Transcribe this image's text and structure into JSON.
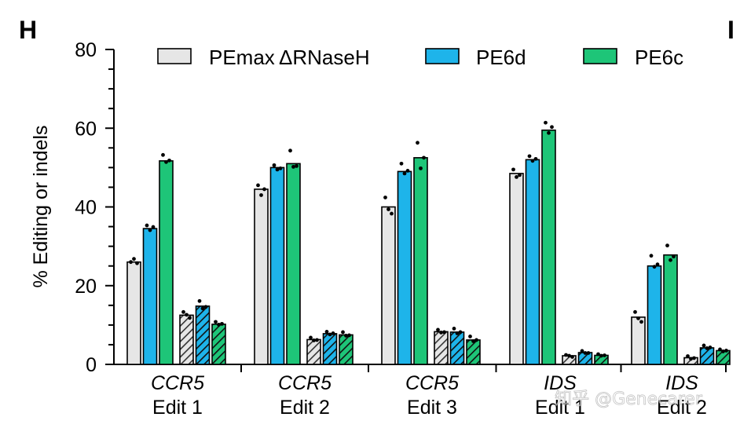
{
  "panel_labels": {
    "left": "H",
    "right": "I"
  },
  "watermark": "知乎 @Genecarer",
  "colors": {
    "gray": "#e6e6e6",
    "blue": "#1eb4ea",
    "green": "#1ec578",
    "axis": "#000000"
  },
  "chart_data": {
    "type": "bar",
    "ylabel": "% Editing or indels",
    "xlabel": "",
    "ylim": [
      0,
      80
    ],
    "yticks": [
      0,
      20,
      40,
      60,
      80
    ],
    "legend": {
      "placement": "top",
      "entries": [
        {
          "name": "PEmax ΔRNaseH",
          "color": "#e6e6e6"
        },
        {
          "name": "PE6d",
          "color": "#1eb4ea"
        },
        {
          "name": "PE6c",
          "color": "#1ec578"
        }
      ]
    },
    "categories": [
      {
        "gene": "CCR5",
        "edit": "Edit 1"
      },
      {
        "gene": "CCR5",
        "edit": "Edit 2"
      },
      {
        "gene": "CCR5",
        "edit": "Edit 3"
      },
      {
        "gene": "IDS",
        "edit": "Edit 1"
      },
      {
        "gene": "IDS",
        "edit": "Edit 2"
      }
    ],
    "measures": [
      "Editing",
      "Indels"
    ],
    "series": [
      {
        "name": "PEmax ΔRNaseH",
        "editing": [
          26,
          44.5,
          40,
          48.5,
          12
        ],
        "indels": [
          12.5,
          6.3,
          8.3,
          2.2,
          1.7
        ],
        "editing_points": [
          [
            26,
            26.8,
            25.7
          ],
          [
            45.5,
            43,
            44.5
          ],
          [
            42.4,
            39.4,
            38.3
          ],
          [
            49.5,
            47.6,
            48.1
          ],
          [
            13.3,
            11.7,
            10.8
          ]
        ],
        "indels_points": [
          [
            13.3,
            12.6,
            11.8
          ],
          [
            6.8,
            6.1,
            6.2
          ],
          [
            8.8,
            8.1,
            8.2
          ],
          [
            2.4,
            2.2,
            1.9
          ],
          [
            2.1,
            1.4,
            1.6
          ]
        ]
      },
      {
        "name": "PE6d",
        "editing": [
          34.5,
          50,
          49,
          52,
          25
        ],
        "indels": [
          14.8,
          7.8,
          8.2,
          3,
          4.2
        ],
        "editing_points": [
          [
            35.3,
            34.1,
            34.9
          ],
          [
            50.6,
            49.5,
            49.8
          ],
          [
            51,
            48.5,
            49.2
          ],
          [
            52.9,
            51.7,
            52.2
          ],
          [
            27.6,
            24.8,
            25.4
          ]
        ],
        "indels_points": [
          [
            16.1,
            14.2,
            14.6
          ],
          [
            8.3,
            7.6,
            7.9
          ],
          [
            9.1,
            7.9,
            8.2
          ],
          [
            3.4,
            2.9,
            2.9
          ],
          [
            4.8,
            4.1,
            4.3
          ]
        ]
      },
      {
        "name": "PE6c",
        "editing": [
          51.7,
          51,
          52.5,
          59.5,
          27.8
        ],
        "indels": [
          10.2,
          7.5,
          6.2,
          2.3,
          3.5
        ],
        "editing_points": [
          [
            53.2,
            51.4,
            51.8
          ],
          [
            54.3,
            50.2,
            50.4
          ],
          [
            56.3,
            49.8,
            52.5
          ],
          [
            61.4,
            58.8,
            60.3
          ],
          [
            30.2,
            26.5,
            27.4
          ]
        ],
        "indels_points": [
          [
            10.8,
            10.1,
            10.3
          ],
          [
            8.2,
            7.3,
            7.4
          ],
          [
            7.1,
            5.9,
            6.2
          ],
          [
            2.6,
            2.2,
            2.3
          ],
          [
            3.8,
            3.3,
            3.5
          ]
        ]
      }
    ]
  }
}
